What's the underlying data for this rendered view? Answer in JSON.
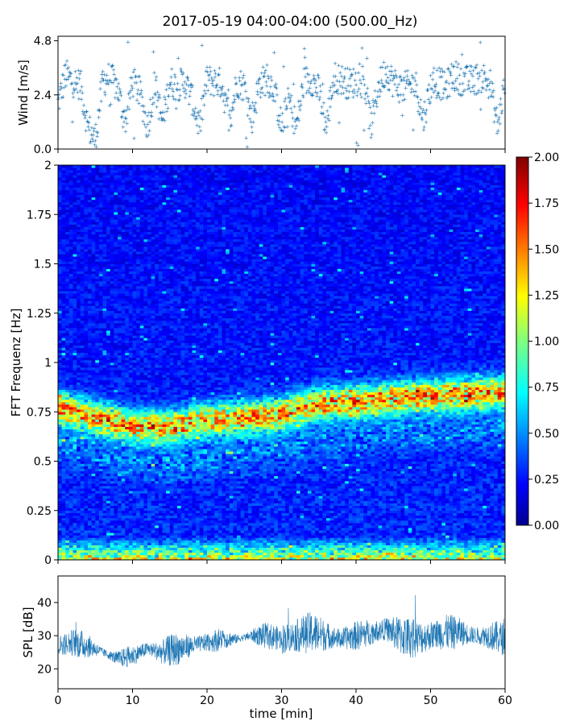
{
  "title": "2017-05-19 04:00-04:00 (500.00_Hz)",
  "colors": {
    "wind": "#1f77b4",
    "spl": "#1f77b4",
    "axis": "#000000"
  },
  "chart_data": [
    {
      "type": "scatter",
      "ylabel": "Wind [m/s]",
      "xlim": [
        0,
        60
      ],
      "ylim": [
        0,
        5.0
      ],
      "yticks": [
        0.0,
        2.4,
        4.8
      ],
      "ytick_labels": [
        "0.0",
        "2.4",
        "4.8"
      ],
      "xtick_labels_shown": false,
      "description_series": {
        "name": "",
        "x": [
          0,
          1,
          2,
          3,
          4,
          5,
          6,
          7,
          8,
          9,
          10,
          11,
          12,
          13,
          14,
          15,
          16,
          17,
          18,
          19,
          20,
          21,
          22,
          23,
          24,
          25,
          26,
          27,
          28,
          29,
          30,
          31,
          32,
          33,
          34,
          35,
          36,
          37,
          38,
          39,
          40,
          41,
          42,
          43,
          44,
          45,
          46,
          47,
          48,
          49,
          50,
          51,
          52,
          53,
          54,
          55,
          56,
          57,
          58,
          59,
          60
        ],
        "y": [
          2.0,
          3.3,
          3.0,
          2.9,
          1.0,
          0.4,
          3.0,
          3.2,
          2.7,
          1.2,
          3.0,
          2.5,
          1.0,
          2.9,
          1.2,
          3.0,
          2.8,
          3.0,
          2.2,
          1.0,
          3.1,
          3.0,
          2.9,
          1.1,
          3.0,
          2.8,
          1.3,
          2.9,
          3.1,
          2.7,
          1.0,
          2.2,
          1.0,
          3.0,
          3.1,
          2.6,
          1.0,
          3.2,
          3.1,
          2.9,
          3.0,
          3.2,
          1.0,
          2.8,
          3.5,
          3.0,
          2.7,
          2.8,
          2.9,
          1.3,
          2.8,
          3.0,
          2.7,
          3.3,
          3.1,
          3.0,
          3.1,
          3.2,
          2.9,
          1.0,
          3.0
        ]
      }
    },
    {
      "type": "heatmap",
      "ylabel": "FFT Frequenz [Hz]",
      "xlim": [
        0,
        60
      ],
      "ylim": [
        0,
        2
      ],
      "yticks": [
        0,
        0.25,
        0.5,
        0.75,
        1,
        1.25,
        1.5,
        1.75,
        2
      ],
      "ytick_labels": [
        "0",
        "0.25",
        "0.5",
        "0.75",
        "1",
        "1.25",
        "1.5",
        "1.75",
        "2"
      ],
      "colorbar": {
        "min": 0.0,
        "max": 2.0,
        "ticks": [
          0.0,
          0.25,
          0.5,
          0.75,
          1.0,
          1.25,
          1.5,
          1.75,
          2.0
        ],
        "tick_labels": [
          "0.00",
          "0.25",
          "0.50",
          "0.75",
          "1.00",
          "1.25",
          "1.50",
          "1.75",
          "2.00"
        ],
        "colormap": "jet"
      },
      "dominant_band": {
        "x": [
          0,
          5,
          10,
          15,
          20,
          25,
          30,
          35,
          40,
          45,
          50,
          55,
          60
        ],
        "freq": [
          0.77,
          0.72,
          0.68,
          0.67,
          0.71,
          0.72,
          0.74,
          0.79,
          0.8,
          0.82,
          0.83,
          0.84,
          0.85
        ]
      },
      "background_level": 0.25,
      "band_level": 1.2,
      "low_freq_level": 1.0
    },
    {
      "type": "line",
      "ylabel": "SPL [dB]",
      "xlabel": "time [min]",
      "xlim": [
        0,
        60
      ],
      "ylim": [
        14,
        48
      ],
      "yticks": [
        20,
        30,
        40
      ],
      "ytick_labels": [
        "20",
        "30",
        "40"
      ],
      "xticks": [
        0,
        10,
        20,
        30,
        40,
        50,
        60
      ],
      "xtick_labels": [
        "0",
        "10",
        "20",
        "30",
        "40",
        "50",
        "60"
      ],
      "description_series": {
        "name": "",
        "x": [
          0,
          2,
          4,
          6,
          8,
          10,
          12,
          14,
          16,
          18,
          20,
          22,
          24,
          26,
          28,
          30,
          32,
          34,
          36,
          38,
          40,
          42,
          44,
          46,
          48,
          50,
          52,
          54,
          56,
          58,
          60
        ],
        "y": [
          27,
          28,
          27,
          25,
          23,
          24,
          26,
          25,
          26,
          27,
          28,
          29,
          29,
          30,
          30,
          29,
          30,
          31,
          30,
          29,
          30,
          31,
          32,
          30,
          29,
          30,
          31,
          31,
          30,
          30,
          29
        ]
      }
    }
  ]
}
